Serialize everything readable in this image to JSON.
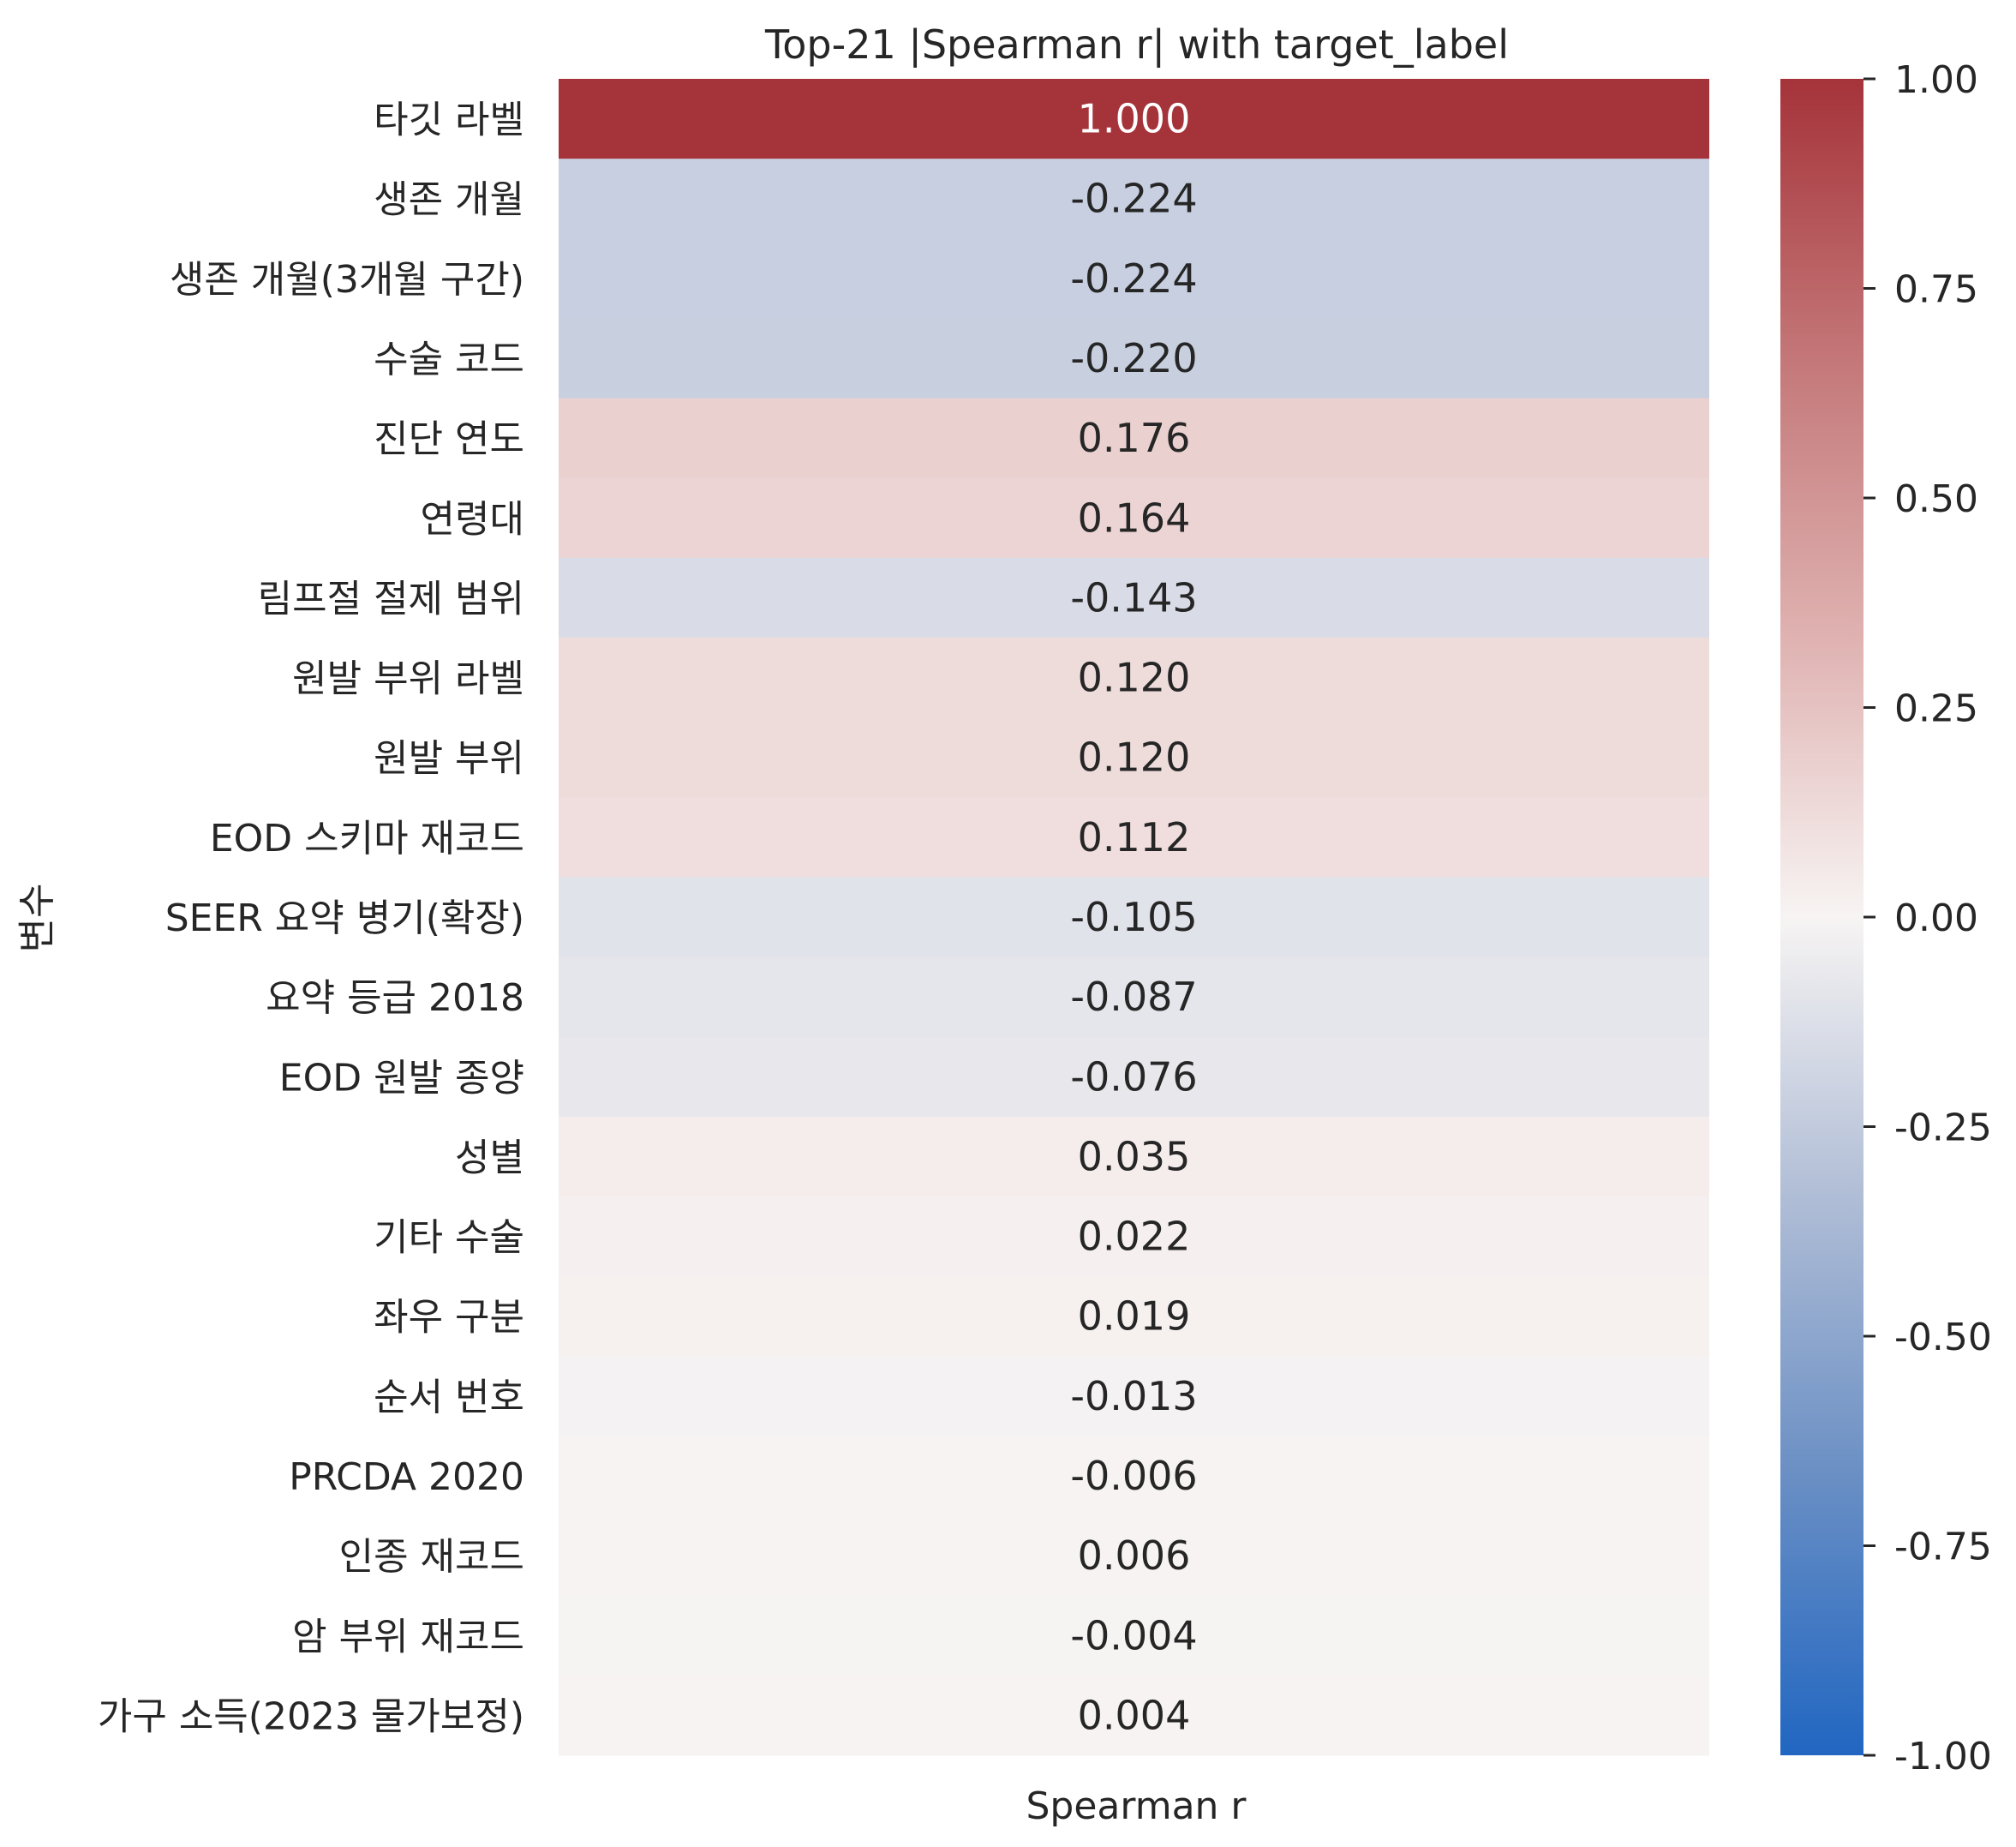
{
  "chart_data": {
    "type": "heatmap",
    "title": "Top-21 |Spearman r| with target_label",
    "xlabel": "Spearman r",
    "ylabel": "변수",
    "columns": [
      "Spearman r"
    ],
    "rows": [
      {
        "label": "타깃 라벨",
        "value": 1.0,
        "text": "1.000"
      },
      {
        "label": "생존 개월",
        "value": -0.224,
        "text": "-0.224"
      },
      {
        "label": "생존 개월(3개월 구간)",
        "value": -0.224,
        "text": "-0.224"
      },
      {
        "label": "수술 코드",
        "value": -0.22,
        "text": "-0.220"
      },
      {
        "label": "진단 연도",
        "value": 0.176,
        "text": "0.176"
      },
      {
        "label": "연령대",
        "value": 0.164,
        "text": "0.164"
      },
      {
        "label": "림프절 절제 범위",
        "value": -0.143,
        "text": "-0.143"
      },
      {
        "label": "원발 부위 라벨",
        "value": 0.12,
        "text": "0.120"
      },
      {
        "label": "원발 부위",
        "value": 0.12,
        "text": "0.120"
      },
      {
        "label": "EOD 스키마 재코드",
        "value": 0.112,
        "text": "0.112"
      },
      {
        "label": "SEER 요약 병기(확장)",
        "value": -0.105,
        "text": "-0.105"
      },
      {
        "label": "요약 등급 2018",
        "value": -0.087,
        "text": "-0.087"
      },
      {
        "label": "EOD 원발 종양",
        "value": -0.076,
        "text": "-0.076"
      },
      {
        "label": "성별",
        "value": 0.035,
        "text": "0.035"
      },
      {
        "label": "기타 수술",
        "value": 0.022,
        "text": "0.022"
      },
      {
        "label": "좌우 구분",
        "value": 0.019,
        "text": "0.019"
      },
      {
        "label": "순서 번호",
        "value": -0.013,
        "text": "-0.013"
      },
      {
        "label": "PRCDA 2020",
        "value": -0.006,
        "text": "-0.006"
      },
      {
        "label": "인종 재코드",
        "value": 0.006,
        "text": "0.006"
      },
      {
        "label": "암 부위 재코드",
        "value": -0.004,
        "text": "-0.004"
      },
      {
        "label": "가구 소득(2023 물가보정)",
        "value": 0.004,
        "text": "0.004"
      }
    ],
    "colormap": {
      "name": "vlag",
      "vmin": -1.0,
      "vmax": 1.0,
      "stops": [
        "#2166c2",
        "#6a8fc4",
        "#b0bdd6",
        "#f7f4f3",
        "#dfb2b1",
        "#c47778",
        "#a5333a"
      ]
    },
    "colorbar": {
      "ticks": [
        1.0,
        0.75,
        0.5,
        0.25,
        0.0,
        -0.25,
        -0.5,
        -0.75,
        -1.0
      ],
      "tick_labels": [
        "1.00",
        "0.75",
        "0.50",
        "0.25",
        "0.00",
        "-0.25",
        "-0.50",
        "-0.75",
        "-1.00"
      ]
    }
  }
}
